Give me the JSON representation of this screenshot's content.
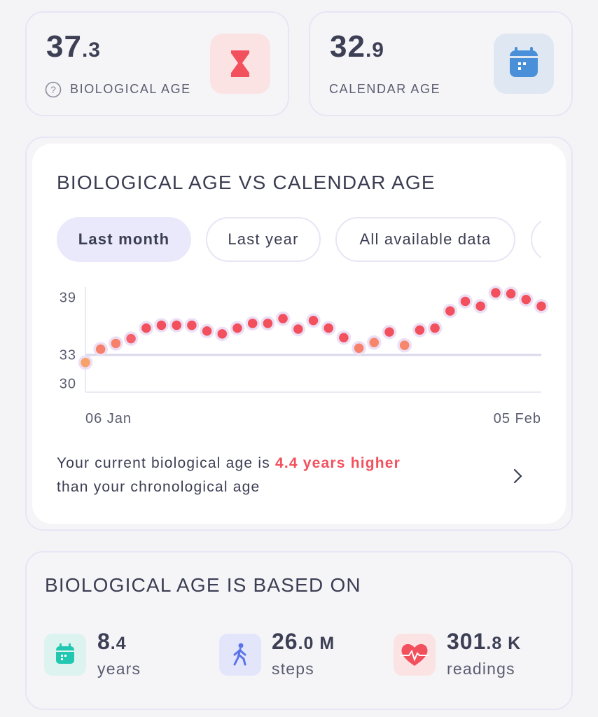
{
  "cards": [
    {
      "value_main": "37",
      "value_decimal": ".3",
      "label": "BIOLOGICAL AGE"
    },
    {
      "value_main": "32",
      "value_decimal": ".9",
      "label": "CALENDAR AGE"
    }
  ],
  "chart_card": {
    "tabs": [
      "Last month",
      "Last year",
      "All available data"
    ],
    "summary_prefix": "Your current biological age is",
    "summary_highlight": "4.4 years higher",
    "summary_suffix": "than your chronological age"
  },
  "chart_data": {
    "type": "scatter",
    "title": "BIOLOGICAL AGE VS CALENDAR AGE",
    "categories": [
      "06 Jan",
      null,
      null,
      null,
      null,
      null,
      null,
      null,
      null,
      null,
      null,
      null,
      null,
      null,
      null,
      null,
      null,
      null,
      null,
      null,
      null,
      null,
      null,
      null,
      null,
      null,
      null,
      null,
      null,
      null,
      "05 Feb"
    ],
    "values": [
      32.1,
      33.5,
      34.1,
      34.6,
      35.7,
      36.0,
      36.0,
      36.0,
      35.4,
      35.1,
      35.7,
      36.2,
      36.2,
      36.7,
      35.6,
      36.5,
      35.7,
      34.7,
      33.6,
      34.2,
      35.3,
      33.9,
      35.5,
      35.7,
      37.5,
      38.5,
      38.0,
      39.4,
      39.3,
      38.7,
      38.0
    ],
    "point_colors": [
      "#f7a26a",
      "#f7806a",
      "#f7806a",
      "#f5606a",
      "#f2505d",
      "#f2505d",
      "#f2505d",
      "#f2505d",
      "#f2505d",
      "#f2505d",
      "#f2505d",
      "#f2505d",
      "#f2505d",
      "#f2505d",
      "#f2505d",
      "#f2505d",
      "#f2505d",
      "#f2505d",
      "#f7806a",
      "#f7866a",
      "#f2505d",
      "#f7866a",
      "#f2505d",
      "#f2505d",
      "#f2505d",
      "#f2505d",
      "#f2505d",
      "#f2505d",
      "#f2505d",
      "#f2505d",
      "#f2505d"
    ],
    "reference_value": 32.9,
    "reference_color": "#d9d9ec",
    "ylim": [
      29,
      40
    ],
    "yticks": [
      30,
      33,
      39
    ]
  },
  "based_on": {
    "title": "BIOLOGICAL AGE IS BASED ON",
    "items": [
      {
        "main": "8",
        "decimal": ".4",
        "unit": "years"
      },
      {
        "main": "26",
        "decimal": ".0 M",
        "unit": "steps"
      },
      {
        "main": "301",
        "decimal": ".8 K",
        "unit": "readings"
      }
    ]
  }
}
